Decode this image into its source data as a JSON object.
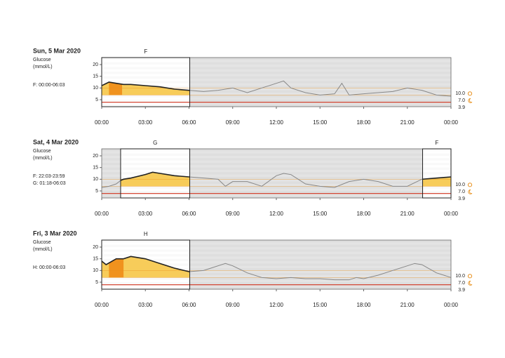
{
  "chart_data": [
    {
      "type": "line",
      "title": "Sun, 5 Mar 2020",
      "y_label": "Glucose",
      "y_unit": "(mmol/L)",
      "periods": [
        "F: 00:00-06:03"
      ],
      "segments": [
        {
          "label": "F",
          "start": 0,
          "end": 6.05
        }
      ],
      "highlight": [
        0.5,
        1.4
      ],
      "x": [
        0,
        0.5,
        1,
        1.5,
        2,
        3,
        4,
        5,
        6,
        7,
        8,
        9,
        10,
        11,
        12,
        12.5,
        13,
        14,
        15,
        16,
        16.5,
        17,
        18,
        19,
        20,
        21,
        22,
        23,
        24
      ],
      "values": [
        11,
        12.5,
        12,
        11.5,
        11.5,
        11,
        10.5,
        9.5,
        9,
        8.5,
        9,
        10,
        8,
        10,
        12,
        13,
        10,
        8,
        7,
        7.5,
        12,
        7,
        7.5,
        8,
        8.5,
        10,
        9,
        7,
        6.5
      ],
      "color": "#222222",
      "fill_color": "#f7cc5a",
      "highlight_color": "#f0921e",
      "ylim": [
        2,
        23
      ],
      "yticks": [
        5,
        10,
        15,
        20
      ],
      "xlim": [
        0,
        24
      ],
      "xticks": [
        {
          "value": 0,
          "label": "00:00"
        },
        {
          "value": 3,
          "label": "03:00"
        },
        {
          "value": 6,
          "label": "06:00"
        },
        {
          "value": 9,
          "label": "09:00"
        },
        {
          "value": 12,
          "label": "12:00"
        },
        {
          "value": 15,
          "label": "15:00"
        },
        {
          "value": 18,
          "label": "18:00"
        },
        {
          "value": 21,
          "label": "21:00"
        },
        {
          "value": 24,
          "label": "00:00"
        }
      ],
      "thresholds": [
        {
          "value": 10,
          "label": "10.0",
          "color": "#e8901c"
        },
        {
          "value": 7,
          "label": "7.0",
          "color": "#e8901c"
        },
        {
          "value": 3.9,
          "label": "3.9",
          "color": "#d0321e"
        }
      ]
    },
    {
      "type": "line",
      "title": "Sat, 4 Mar 2020",
      "y_label": "Glucose",
      "y_unit": "(mmol/L)",
      "periods": [
        "F: 22:03-23:59",
        "G: 01:18-06:03"
      ],
      "segments": [
        {
          "label": "G",
          "start": 1.3,
          "end": 6.05
        },
        {
          "label": "F",
          "start": 22.05,
          "end": 24
        }
      ],
      "x": [
        0,
        0.5,
        1,
        1.3,
        1.5,
        2,
        3,
        3.5,
        4,
        5,
        6,
        7,
        8,
        8.5,
        9,
        10,
        11,
        12,
        12.5,
        13,
        14,
        15,
        16,
        17,
        18,
        19,
        20,
        21,
        22,
        23,
        24
      ],
      "values": [
        6.5,
        7,
        8,
        9.5,
        10,
        10.5,
        12,
        13,
        12.5,
        11.5,
        11,
        10.5,
        10,
        7,
        9,
        9,
        7,
        11.5,
        12.5,
        12,
        8,
        7,
        6.5,
        9,
        10,
        9,
        7,
        7,
        10,
        10.5,
        11
      ],
      "color": "#222222",
      "fill_color": "#f7cc5a",
      "ylim": [
        2,
        23
      ],
      "yticks": [
        5,
        10,
        15,
        20
      ],
      "xlim": [
        0,
        24
      ],
      "xticks": [
        {
          "value": 0,
          "label": "00:00"
        },
        {
          "value": 3,
          "label": "03:00"
        },
        {
          "value": 6,
          "label": "06:00"
        },
        {
          "value": 9,
          "label": "09:00"
        },
        {
          "value": 12,
          "label": "12:00"
        },
        {
          "value": 15,
          "label": "15:00"
        },
        {
          "value": 18,
          "label": "18:00"
        },
        {
          "value": 21,
          "label": "21:00"
        },
        {
          "value": 24,
          "label": "00:00"
        }
      ],
      "thresholds": [
        {
          "value": 10,
          "label": "10.0",
          "color": "#e8901c"
        },
        {
          "value": 7,
          "label": "7.0",
          "color": "#e8901c"
        },
        {
          "value": 3.9,
          "label": "3.9",
          "color": "#d0321e"
        }
      ]
    },
    {
      "type": "line",
      "title": "Fri, 3 Mar 2020",
      "y_label": "Glucose",
      "y_unit": "(mmol/L)",
      "periods": [
        "H: 00:00-06:03"
      ],
      "segments": [
        {
          "label": "H",
          "start": 0,
          "end": 6.05
        }
      ],
      "highlight": [
        0.5,
        1.5
      ],
      "x": [
        0,
        0.3,
        1,
        1.5,
        2,
        3,
        4,
        5,
        6,
        7,
        7.5,
        8.5,
        9,
        10,
        11,
        12,
        13,
        14,
        15,
        16,
        17,
        17.5,
        18,
        19,
        20,
        21,
        21.5,
        22,
        23,
        24
      ],
      "values": [
        14,
        12.5,
        15,
        15,
        16,
        15,
        13,
        11,
        9.5,
        10,
        11,
        13,
        12,
        9,
        7,
        6.5,
        7,
        6.5,
        6.5,
        6,
        6,
        7,
        6.5,
        8,
        10,
        12,
        13,
        12.5,
        9,
        7
      ],
      "color": "#222222",
      "fill_color": "#f7cc5a",
      "highlight_color": "#f0921e",
      "ylim": [
        2,
        23
      ],
      "yticks": [
        5,
        10,
        15,
        20
      ],
      "xlim": [
        0,
        24
      ],
      "xticks": [
        {
          "value": 0,
          "label": "00:00"
        },
        {
          "value": 3,
          "label": "03:00"
        },
        {
          "value": 6,
          "label": "06:00"
        },
        {
          "value": 9,
          "label": "09:00"
        },
        {
          "value": 12,
          "label": "12:00"
        },
        {
          "value": 15,
          "label": "15:00"
        },
        {
          "value": 18,
          "label": "18:00"
        },
        {
          "value": 21,
          "label": "21:00"
        },
        {
          "value": 24,
          "label": "00:00"
        }
      ],
      "thresholds": [
        {
          "value": 10,
          "label": "10.0",
          "color": "#e8901c"
        },
        {
          "value": 7,
          "label": "7.0",
          "color": "#e8901c"
        },
        {
          "value": 3.9,
          "label": "3.9",
          "color": "#d0321e"
        }
      ]
    }
  ]
}
